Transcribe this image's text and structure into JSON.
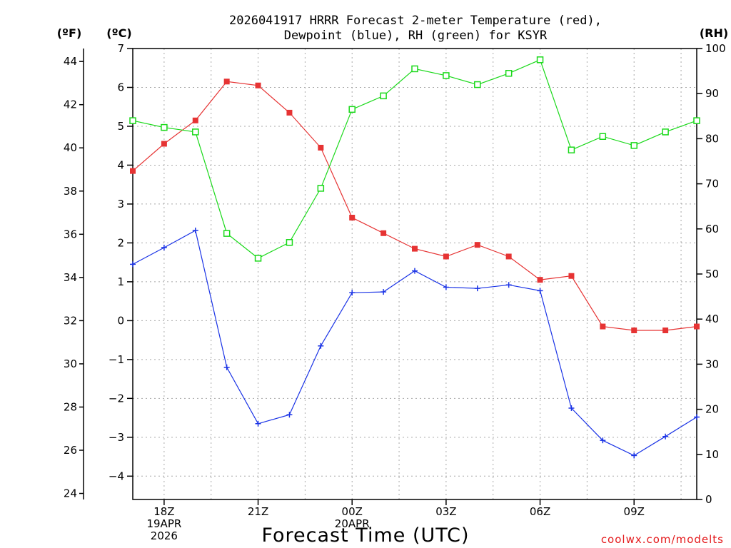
{
  "chart_data": {
    "type": "line",
    "title_line1": "2026041917 HRRR Forecast 2-meter Temperature (red),",
    "title_line2": "Dewpoint (blue), RH (green) for KSYR",
    "unit_f": "(ºF)",
    "unit_c": "(ºC)",
    "unit_rh": "(RH)",
    "xlabel": "Forecast Time (UTC)",
    "credit": "coolwx.com/modelts",
    "x_hours": [
      17,
      18,
      19,
      20,
      21,
      22,
      23,
      24,
      25,
      26,
      27,
      28,
      29,
      30,
      31,
      32,
      33,
      34,
      35
    ],
    "xlim": [
      17,
      35
    ],
    "x_ticks": [
      {
        "hour": 18,
        "lines": [
          "18Z",
          "19APR",
          "2026"
        ]
      },
      {
        "hour": 21,
        "lines": [
          "21Z"
        ]
      },
      {
        "hour": 24,
        "lines": [
          "00Z",
          "20APR"
        ]
      },
      {
        "hour": 27,
        "lines": [
          "03Z"
        ]
      },
      {
        "hour": 30,
        "lines": [
          "06Z"
        ]
      },
      {
        "hour": 33,
        "lines": [
          "09Z"
        ]
      }
    ],
    "c_axis": {
      "ylim": [
        -4.6,
        7.0
      ],
      "ticks": [
        "7",
        "6",
        "5",
        "4",
        "3",
        "2",
        "1",
        "0",
        "−1",
        "−2",
        "−3",
        "−4"
      ],
      "tick_values": [
        7,
        6,
        5,
        4,
        3,
        2,
        1,
        0,
        -1,
        -2,
        -3,
        -4
      ]
    },
    "f_axis": {
      "ticks": [
        "44",
        "42",
        "40",
        "38",
        "36",
        "34",
        "32",
        "30",
        "28",
        "26",
        "24"
      ],
      "tick_values": [
        44,
        42,
        40,
        38,
        36,
        34,
        32,
        30,
        28,
        26,
        24
      ]
    },
    "rh_axis": {
      "ylim": [
        0,
        100
      ],
      "ticks": [
        "100",
        "90",
        "80",
        "70",
        "60",
        "50",
        "40",
        "30",
        "20",
        "10",
        "0"
      ],
      "tick_values": [
        100,
        90,
        80,
        70,
        60,
        50,
        40,
        30,
        20,
        10,
        0
      ]
    },
    "series": [
      {
        "name": "Temperature",
        "axis": "c",
        "color": "#e63333",
        "marker": "filled-square",
        "values": [
          3.85,
          4.55,
          5.15,
          6.15,
          6.05,
          5.35,
          4.45,
          2.65,
          2.25,
          1.85,
          1.65,
          1.95,
          1.65,
          1.05,
          1.15,
          -0.15,
          -0.25,
          -0.25,
          -0.15
        ]
      },
      {
        "name": "Dewpoint",
        "axis": "c",
        "color": "#1a33e6",
        "marker": "plus",
        "values": [
          1.45,
          1.88,
          2.32,
          -1.2,
          -2.65,
          -2.42,
          -0.65,
          0.72,
          0.74,
          1.28,
          0.86,
          0.83,
          0.92,
          0.77,
          -2.25,
          -3.08,
          -3.47,
          -2.98,
          -2.48
        ]
      },
      {
        "name": "RH",
        "axis": "rh",
        "color": "#1ad91a",
        "marker": "open-square",
        "values": [
          84.0,
          82.5,
          81.5,
          59.0,
          53.5,
          57.0,
          69.0,
          86.5,
          89.5,
          95.5,
          94.0,
          92.0,
          94.5,
          97.5,
          77.5,
          80.5,
          78.5,
          81.5,
          84.0
        ]
      }
    ]
  }
}
